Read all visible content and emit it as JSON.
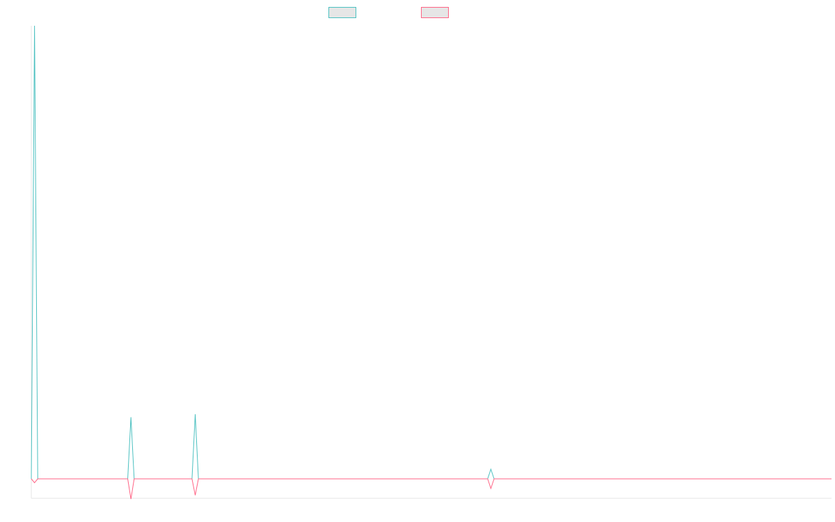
{
  "chart_data": {
    "type": "line",
    "title": "",
    "xlabel": "",
    "ylabel": "",
    "grid": false,
    "legend": "top-center",
    "ylim": [
      -1,
      23.5
    ],
    "x_count": 250,
    "series": [
      {
        "color": "#4bc0c0",
        "legend_fill": "#e6e6e6",
        "points": [
          [
            0,
            0
          ],
          [
            1,
            23.5
          ],
          [
            2,
            0
          ],
          [
            30,
            0
          ],
          [
            31,
            3.2
          ],
          [
            32,
            0
          ],
          [
            50,
            0
          ],
          [
            51,
            3.35
          ],
          [
            52,
            0
          ],
          [
            142,
            0
          ],
          [
            143,
            0.5
          ],
          [
            144,
            0
          ],
          [
            249,
            0
          ]
        ]
      },
      {
        "color": "#ff6384",
        "legend_fill": "#e6e6e6",
        "points": [
          [
            0,
            0
          ],
          [
            1,
            -0.2
          ],
          [
            2,
            0
          ],
          [
            30,
            0
          ],
          [
            31,
            -1.05
          ],
          [
            32,
            0
          ],
          [
            50,
            0
          ],
          [
            51,
            -0.85
          ],
          [
            52,
            0
          ],
          [
            142,
            0
          ],
          [
            143,
            -0.5
          ],
          [
            144,
            0
          ],
          [
            249,
            0
          ]
        ]
      }
    ]
  }
}
